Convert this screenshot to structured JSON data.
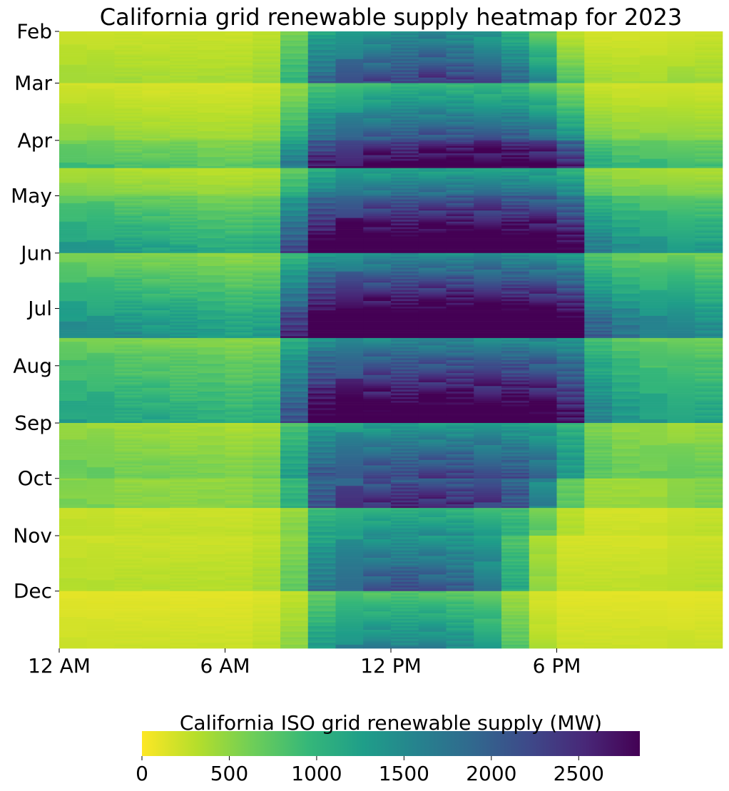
{
  "chart_data": {
    "type": "heatmap",
    "title": "California grid renewable supply heatmap for 2023",
    "x_tick_labels": [
      "12 AM",
      "6 AM",
      "12 PM",
      "6 PM"
    ],
    "x_tick_hours": [
      0,
      6,
      12,
      18
    ],
    "hours_per_day": 24,
    "y_tick_labels": [
      "Feb",
      "Mar",
      "Apr",
      "May",
      "Jun",
      "Jul",
      "Aug",
      "Sep",
      "Oct",
      "Nov",
      "Dec"
    ],
    "y_range": [
      "2023-02-01",
      "2023-12-31"
    ],
    "y_tick_dates": [
      "2023-02-01",
      "2023-03-01",
      "2023-04-01",
      "2023-05-01",
      "2023-06-01",
      "2023-07-01",
      "2023-08-01",
      "2023-09-01",
      "2023-10-01",
      "2023-11-01",
      "2023-12-01"
    ],
    "colorbar": {
      "label": "California ISO grid renewable supply (MW)",
      "ticks": [
        0,
        500,
        1000,
        1500,
        2000,
        2500
      ],
      "range": [
        0,
        2850
      ],
      "colormap": "viridis_r"
    },
    "monthly_hourly_mw": {
      "Feb": [
        250,
        250,
        250,
        250,
        250,
        250,
        250,
        300,
        650,
        1300,
        1450,
        1500,
        1600,
        1650,
        1550,
        1450,
        1150,
        800,
        300,
        200,
        200,
        200,
        250,
        250
      ],
      "Mar": [
        350,
        350,
        330,
        300,
        300,
        300,
        300,
        350,
        800,
        1400,
        1550,
        1650,
        1700,
        1750,
        1700,
        1650,
        1600,
        1350,
        900,
        400,
        350,
        350,
        350,
        350
      ],
      "Apr": [
        550,
        550,
        500,
        500,
        500,
        450,
        450,
        500,
        1100,
        1800,
        1950,
        2000,
        2050,
        2100,
        2100,
        2100,
        2050,
        2000,
        1700,
        700,
        600,
        600,
        550,
        550
      ],
      "May": [
        850,
        850,
        800,
        800,
        750,
        700,
        700,
        750,
        1500,
        2150,
        2300,
        2350,
        2350,
        2400,
        2400,
        2400,
        2350,
        2300,
        2050,
        1100,
        950,
        900,
        900,
        850
      ],
      "Jun": [
        1050,
        1000,
        1000,
        950,
        950,
        900,
        850,
        900,
        1650,
        2350,
        2450,
        2500,
        2550,
        2550,
        2550,
        2550,
        2500,
        2450,
        2250,
        1350,
        1150,
        1100,
        1100,
        1050
      ],
      "Jul": [
        1100,
        1050,
        1050,
        1000,
        1000,
        950,
        900,
        950,
        1850,
        2500,
        2600,
        2650,
        2650,
        2650,
        2700,
        2650,
        2650,
        2600,
        2400,
        1500,
        1300,
        1200,
        1150,
        1100
      ],
      "Aug": [
        950,
        950,
        900,
        900,
        850,
        850,
        800,
        850,
        1650,
        2300,
        2400,
        2450,
        2450,
        2500,
        2500,
        2450,
        2450,
        2400,
        2150,
        1300,
        1100,
        1000,
        1000,
        950
      ],
      "Sep": [
        750,
        750,
        700,
        700,
        650,
        650,
        600,
        650,
        1400,
        2050,
        2150,
        2200,
        2250,
        2250,
        2250,
        2200,
        2150,
        2050,
        1700,
        950,
        800,
        800,
        750,
        750
      ],
      "Oct": [
        450,
        450,
        400,
        400,
        400,
        400,
        400,
        450,
        800,
        1600,
        1750,
        1800,
        1800,
        1850,
        1800,
        1750,
        1650,
        1300,
        600,
        350,
        350,
        350,
        400,
        450
      ],
      "Nov": [
        250,
        250,
        250,
        250,
        250,
        250,
        250,
        300,
        550,
        1350,
        1500,
        1550,
        1600,
        1550,
        1500,
        1350,
        900,
        400,
        200,
        200,
        200,
        200,
        250,
        250
      ],
      "Dec": [
        200,
        200,
        200,
        200,
        200,
        200,
        200,
        250,
        450,
        1150,
        1350,
        1400,
        1400,
        1400,
        1300,
        1150,
        700,
        300,
        200,
        200,
        200,
        200,
        200,
        200
      ]
    }
  }
}
